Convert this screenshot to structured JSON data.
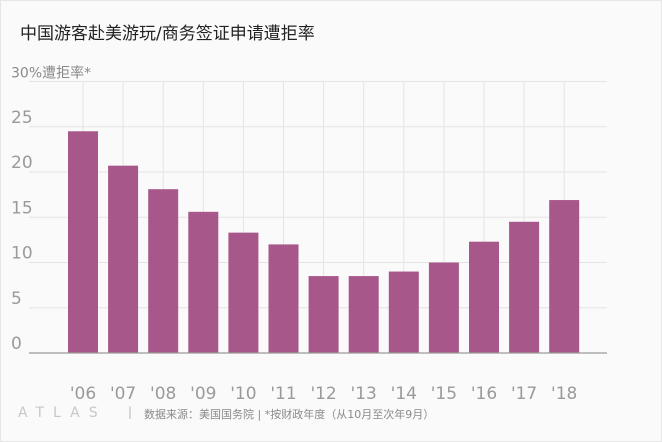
{
  "title": "中国游客赴美游玩/商务签证申请遭拒率",
  "footer": {
    "logo": "ATLAS",
    "separator": "|",
    "source": "数据来源：美国国务院 | *按财政年度（从10月至次年9月）"
  },
  "colors": {
    "bar": "#a8578a",
    "grid": "#e4e4e4",
    "axis": "#9a9a9a",
    "tick_text": "#9a9a9a"
  },
  "chart_data": {
    "type": "bar",
    "title": "中国游客赴美游玩/商务签证申请遭拒率",
    "ylabel": "30%遭拒率*",
    "xlabel": "",
    "categories": [
      "'06",
      "'07",
      "'08",
      "'09",
      "'10",
      "'11",
      "'12",
      "'13",
      "'14",
      "'15",
      "'16",
      "'17",
      "'18"
    ],
    "values": [
      24.5,
      20.7,
      18.1,
      15.6,
      13.3,
      12.0,
      8.5,
      8.5,
      9.0,
      10.0,
      12.3,
      14.5,
      16.9
    ],
    "yticks": [
      "0",
      "5",
      "10",
      "15",
      "20",
      "25"
    ],
    "ylim": [
      0,
      30
    ],
    "grid": true,
    "legend": "none"
  }
}
